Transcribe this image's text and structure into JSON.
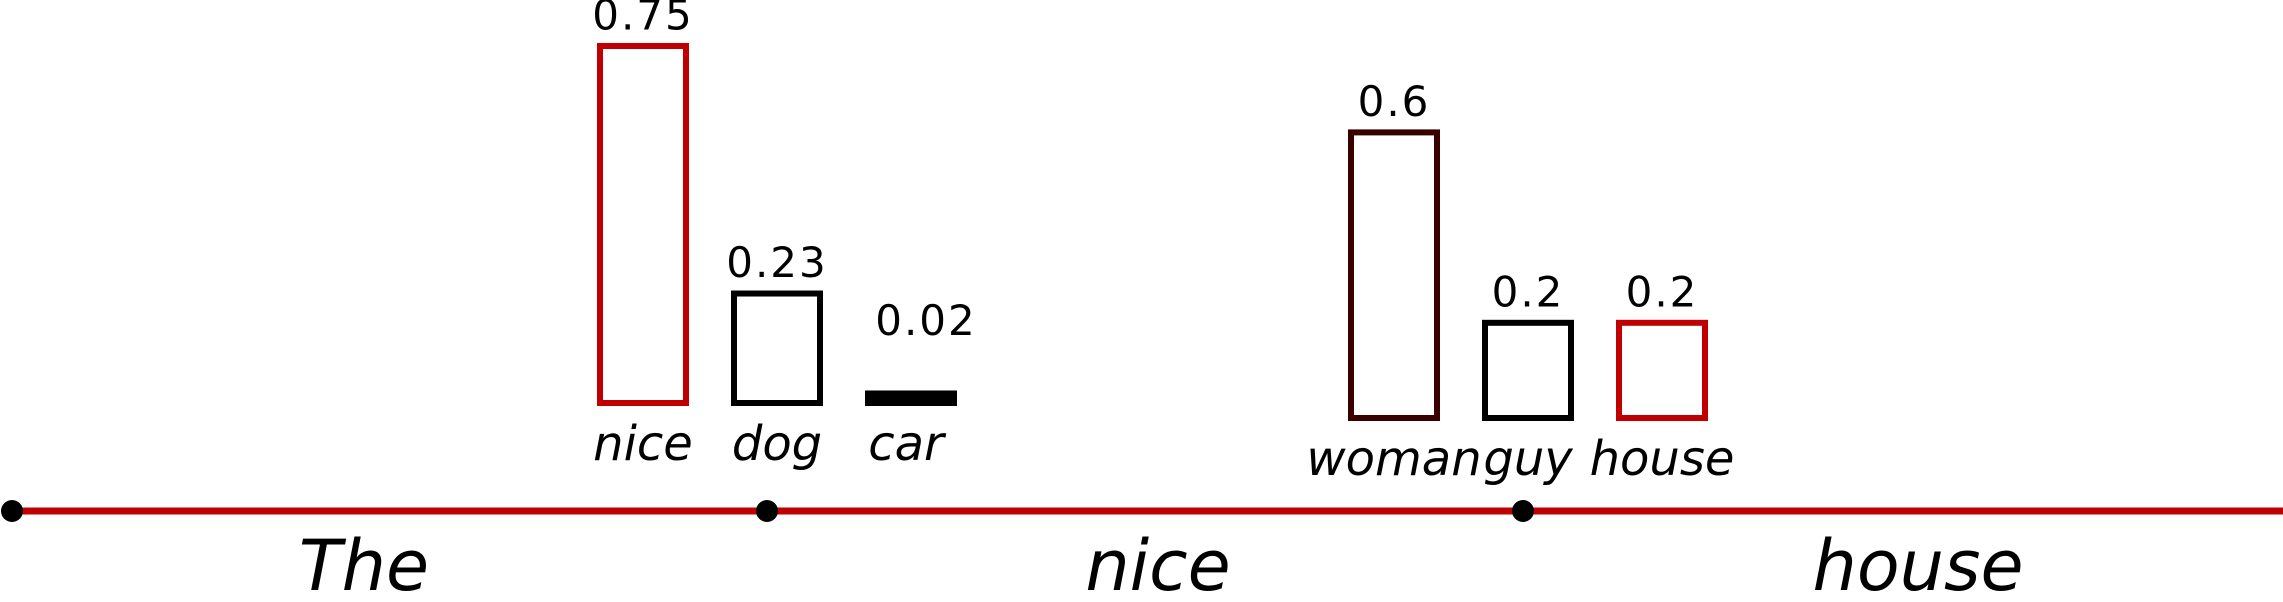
{
  "tokens": [
    "The",
    "nice",
    "house"
  ],
  "steps": [
    {
      "candidates": [
        {
          "word": "nice",
          "probability": 0.75,
          "color": "#c00000"
        },
        {
          "word": "dog",
          "probability": 0.23,
          "color": "#000000"
        },
        {
          "word": "car",
          "probability": 0.02,
          "color": "#000000"
        }
      ]
    },
    {
      "candidates": [
        {
          "word": "woman",
          "probability": 0.6,
          "color": "#3a0000"
        },
        {
          "word": "guy",
          "probability": 0.2,
          "color": "#000000"
        },
        {
          "word": "house",
          "probability": 0.2,
          "color": "#c00000"
        }
      ]
    }
  ]
}
